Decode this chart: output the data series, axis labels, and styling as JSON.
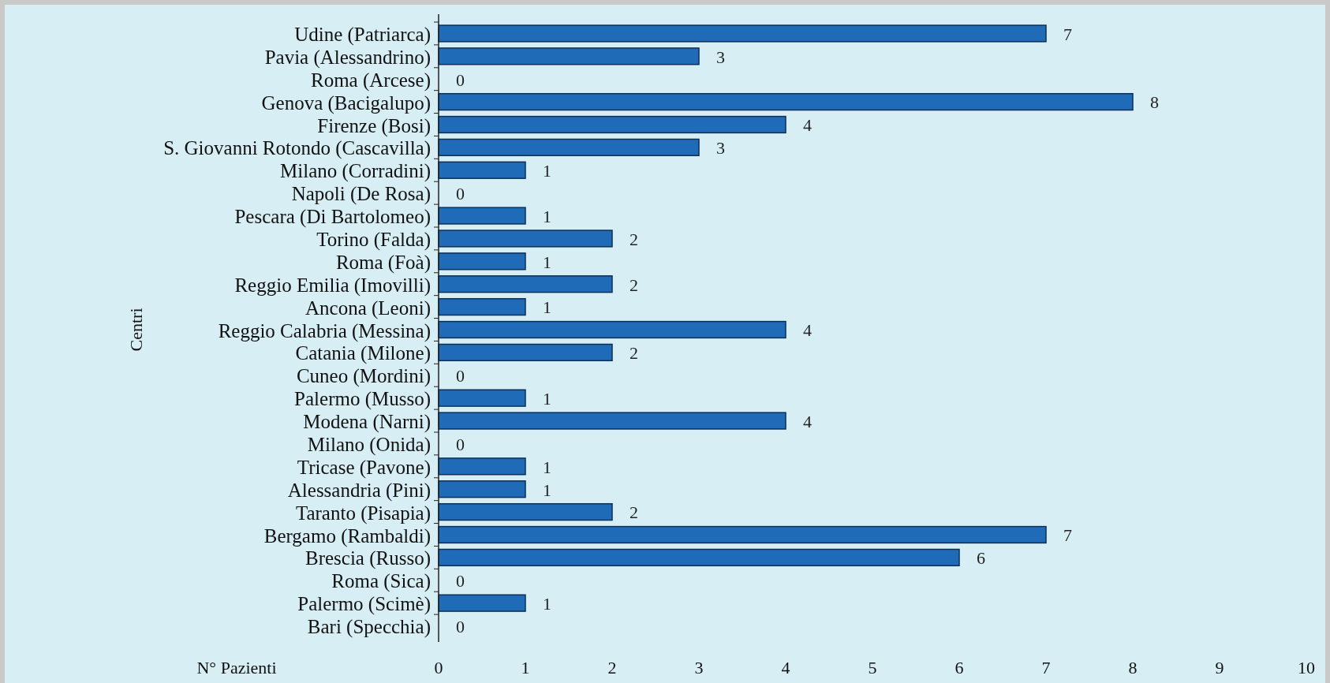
{
  "chart_data": {
    "type": "bar",
    "orientation": "horizontal",
    "xlabel": "N° Pazienti",
    "ylabel": "Centri",
    "categories": [
      "Udine (Patriarca)",
      "Pavia (Alessandrino)",
      "Roma (Arcese)",
      "Genova (Bacigalupo)",
      "Firenze (Bosi)",
      "S. Giovanni Rotondo (Cascavilla)",
      "Milano (Corradini)",
      "Napoli (De Rosa)",
      "Pescara (Di Bartolomeo)",
      "Torino (Falda)",
      "Roma (Foà)",
      "Reggio Emilia (Imovilli)",
      "Ancona (Leoni)",
      "Reggio Calabria (Messina)",
      "Catania (Milone)",
      "Cuneo (Mordini)",
      "Palermo (Musso)",
      "Modena (Narni)",
      "Milano (Onida)",
      "Tricase (Pavone)",
      "Alessandria (Pini)",
      "Taranto (Pisapia)",
      "Bergamo (Rambaldi)",
      "Brescia (Russo)",
      "Roma (Sica)",
      "Palermo (Scimè)",
      "Bari (Specchia)"
    ],
    "values": [
      7,
      3,
      0,
      8,
      4,
      3,
      1,
      0,
      1,
      2,
      1,
      2,
      1,
      4,
      2,
      0,
      1,
      4,
      0,
      1,
      1,
      2,
      7,
      6,
      0,
      1,
      0
    ],
    "color": "#1f6bb8",
    "xlim": [
      0,
      10
    ],
    "xticks": [
      0,
      1,
      2,
      3,
      4,
      5,
      6,
      7,
      8,
      9,
      10
    ],
    "data_labels": true,
    "grid": false
  }
}
